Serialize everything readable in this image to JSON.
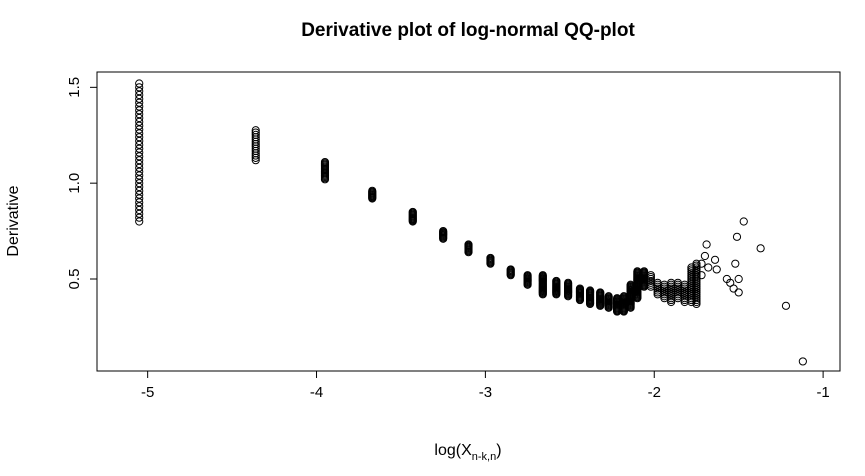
{
  "chart_data": {
    "type": "scatter",
    "title": "Derivative plot of log-normal QQ-plot",
    "xlabel_main": "log(X",
    "xlabel_sub": "n-k,n",
    "xlabel_close": ")",
    "ylabel": "Derivative",
    "xlim": [
      -5.3,
      -0.9
    ],
    "ylim": [
      0.02,
      1.58
    ],
    "xticks": [
      -5,
      -4,
      -3,
      -2,
      -1
    ],
    "xtick_labels": [
      "-5",
      "-4",
      "-3",
      "-2",
      "-1"
    ],
    "yticks": [
      0.5,
      1.0,
      1.5
    ],
    "ytick_labels": [
      "0.5",
      "1.0",
      "1.5"
    ],
    "grid": false,
    "marker": "open-circle",
    "clusters": [
      {
        "x": -5.05,
        "y_min": 0.8,
        "y_max": 1.52,
        "step": 0.02
      },
      {
        "x": -4.36,
        "y_min": 1.12,
        "y_max": 1.28,
        "step": 0.012
      },
      {
        "x": -3.95,
        "y_min": 1.02,
        "y_max": 1.11,
        "step": 0.006
      },
      {
        "x": -3.67,
        "y_min": 0.92,
        "y_max": 0.96,
        "step": 0.005
      },
      {
        "x": -3.43,
        "y_min": 0.8,
        "y_max": 0.85,
        "step": 0.005
      },
      {
        "x": -3.25,
        "y_min": 0.71,
        "y_max": 0.75,
        "step": 0.005
      },
      {
        "x": -3.1,
        "y_min": 0.64,
        "y_max": 0.68,
        "step": 0.005
      },
      {
        "x": -2.97,
        "y_min": 0.58,
        "y_max": 0.61,
        "step": 0.005
      },
      {
        "x": -2.85,
        "y_min": 0.52,
        "y_max": 0.55,
        "step": 0.005
      },
      {
        "x": -2.75,
        "y_min": 0.47,
        "y_max": 0.52,
        "step": 0.005
      },
      {
        "x": -2.66,
        "y_min": 0.42,
        "y_max": 0.52,
        "step": 0.005
      },
      {
        "x": -2.58,
        "y_min": 0.42,
        "y_max": 0.49,
        "step": 0.005
      },
      {
        "x": -2.51,
        "y_min": 0.41,
        "y_max": 0.48,
        "step": 0.005
      },
      {
        "x": -2.44,
        "y_min": 0.39,
        "y_max": 0.45,
        "step": 0.005
      },
      {
        "x": -2.38,
        "y_min": 0.37,
        "y_max": 0.44,
        "step": 0.005
      },
      {
        "x": -2.32,
        "y_min": 0.36,
        "y_max": 0.43,
        "step": 0.005
      },
      {
        "x": -2.27,
        "y_min": 0.35,
        "y_max": 0.41,
        "step": 0.005
      },
      {
        "x": -2.22,
        "y_min": 0.33,
        "y_max": 0.4,
        "step": 0.005
      },
      {
        "x": -2.18,
        "y_min": 0.33,
        "y_max": 0.41,
        "step": 0.005
      },
      {
        "x": -2.14,
        "y_min": 0.35,
        "y_max": 0.47,
        "step": 0.005
      },
      {
        "x": -2.1,
        "y_min": 0.4,
        "y_max": 0.54,
        "step": 0.005
      },
      {
        "x": -2.06,
        "y_min": 0.46,
        "y_max": 0.54,
        "step": 0.005
      },
      {
        "x": -2.02,
        "y_min": 0.46,
        "y_max": 0.52,
        "step": 0.01
      },
      {
        "x": -1.98,
        "y_min": 0.42,
        "y_max": 0.48,
        "step": 0.01
      },
      {
        "x": -1.94,
        "y_min": 0.4,
        "y_max": 0.47,
        "step": 0.01
      },
      {
        "x": -1.9,
        "y_min": 0.38,
        "y_max": 0.48,
        "step": 0.01
      },
      {
        "x": -1.86,
        "y_min": 0.4,
        "y_max": 0.48,
        "step": 0.01
      },
      {
        "x": -1.82,
        "y_min": 0.38,
        "y_max": 0.47,
        "step": 0.01
      },
      {
        "x": -1.78,
        "y_min": 0.38,
        "y_max": 0.56,
        "step": 0.01
      },
      {
        "x": -1.75,
        "y_min": 0.37,
        "y_max": 0.58,
        "step": 0.01
      }
    ],
    "points": [
      [
        -1.72,
        0.52
      ],
      [
        -1.72,
        0.58
      ],
      [
        -1.7,
        0.62
      ],
      [
        -1.69,
        0.68
      ],
      [
        -1.68,
        0.56
      ],
      [
        -1.64,
        0.6
      ],
      [
        -1.63,
        0.55
      ],
      [
        -1.57,
        0.5
      ],
      [
        -1.55,
        0.48
      ],
      [
        -1.53,
        0.45
      ],
      [
        -1.52,
        0.58
      ],
      [
        -1.51,
        0.72
      ],
      [
        -1.5,
        0.5
      ],
      [
        -1.5,
        0.43
      ],
      [
        -1.47,
        0.8
      ],
      [
        -1.37,
        0.66
      ],
      [
        -1.22,
        0.36
      ],
      [
        -1.12,
        0.07
      ]
    ]
  }
}
